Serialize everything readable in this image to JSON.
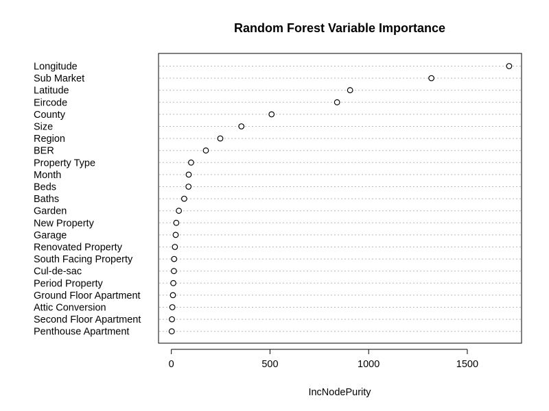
{
  "chart_data": {
    "type": "scatter",
    "title": "Random Forest Variable Importance",
    "xlabel": "IncNodePurity",
    "ylabel": "",
    "xlim": [
      -65,
      1775
    ],
    "xticks": [
      0,
      500,
      1000,
      1500
    ],
    "grid": "horizontal dotted",
    "categories": [
      "Longitude",
      "Sub Market",
      "Latitude",
      "Eircode",
      "County",
      "Size",
      "Region",
      "BER",
      "Property Type",
      "Month",
      "Beds",
      "Baths",
      "Garden",
      "New Property",
      "Garage",
      "Renovated Property",
      "South Facing Property",
      "Cul-de-sac",
      "Period Property",
      "Ground Floor Apartment",
      "Attic Conversion",
      "Second Floor Apartment",
      "Penthouse Apartment"
    ],
    "values": [
      1712,
      1318,
      906,
      840,
      508,
      355,
      248,
      175,
      100,
      88,
      87,
      65,
      38,
      25,
      22,
      18,
      14,
      13,
      10,
      8,
      5,
      3,
      2
    ]
  }
}
